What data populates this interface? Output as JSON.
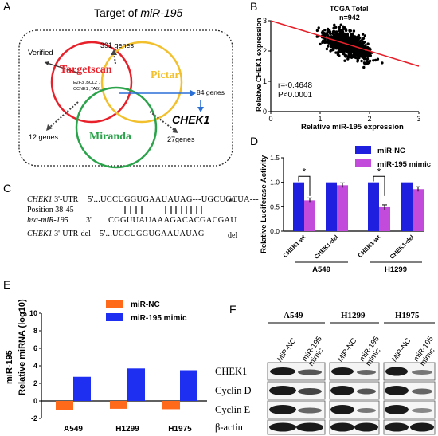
{
  "panels": {
    "A": {
      "label": "A",
      "title_prefix": "Target of ",
      "title_em": "miR-195",
      "circles": [
        {
          "name": "Targetscan",
          "color": "#e8202a"
        },
        {
          "name": "Pictar",
          "color": "#f2c02c"
        },
        {
          "name": "Miranda",
          "color": "#2aa34a"
        }
      ],
      "verified": "Verified",
      "verified_genes_1": "E2F3 ,BCL2 ,",
      "verified_genes_2": "CCNE1 ,TAB1",
      "genes_391": "391 genes",
      "genes_84": "84 genes",
      "genes_12": "12 genes",
      "genes_27": "27genes",
      "target": "CHEK1"
    },
    "B": {
      "label": "B",
      "title": "TCGA  Total",
      "n": "n=942",
      "r": "r=-0.4648",
      "p": "P<0.0001",
      "line_color": "#e8202a"
    },
    "C": {
      "label": "C",
      "utr_name": "CHEK1",
      "utr_suffix": " 3'-UTR",
      "utr_seq": "5'...UCCUGGUGAAUAUAG---UGCUGCUA---",
      "wt": "wt",
      "position": "Position 38-45",
      "mir_name": "hsa-miR-195",
      "mir_seq": "CGGUUAUAAAGACACGACGAU",
      "three_prime": "3'",
      "del_name": "CHEK1",
      "del_suffix": " 3'-UTR-del",
      "del_seq": "5'...UCCUGGUGAAUAUAG---",
      "del": "del"
    },
    "D": {
      "label": "D"
    },
    "E": {
      "label": "E"
    },
    "F": {
      "label": "F",
      "cell_lines": [
        "A549",
        "H1299",
        "H1975"
      ],
      "lane_1": "MiR-NC",
      "lane_2a": "miR-195",
      "lane_2b": "mimic",
      "rows": [
        "CHEK1",
        "Cyclin D",
        "Cyclin E",
        "β-actin"
      ]
    }
  },
  "chart_data": [
    {
      "id": "B",
      "type": "scatter",
      "title": "TCGA  Total",
      "subtitle": "n=942",
      "xlabel": "Relative miR-195 expression",
      "ylabel": "Relative CHEK1 expression",
      "xlim": [
        0,
        3
      ],
      "ylim": [
        0,
        3
      ],
      "xticks": [
        "0",
        "1",
        "2",
        "3"
      ],
      "yticks": [
        "0",
        "1",
        "2",
        "3"
      ],
      "regression": {
        "x": [
          0,
          3
        ],
        "y": [
          3.0,
          1.5
        ]
      },
      "annotations": [
        "r=-0.4648",
        "P<0.0001"
      ],
      "point_count": 942
    },
    {
      "id": "D",
      "type": "bar",
      "ylabel": "Relative Luciferase Activity",
      "ylim": [
        0,
        1.5
      ],
      "yticks": [
        "0.0",
        "0.5",
        "1.0",
        "1.5"
      ],
      "categories": [
        "CHEK1-wt",
        "CHEK1-del",
        "CHEK1-wt",
        "CHEK1-del"
      ],
      "groups": [
        "A549",
        "H1299"
      ],
      "series": [
        {
          "name": "miR-NC",
          "color": "#1f1fe0",
          "values": [
            1.0,
            1.0,
            1.0,
            1.0
          ]
        },
        {
          "name": "miR-195 mimic",
          "color": "#c24bdc",
          "values": [
            0.63,
            0.94,
            0.49,
            0.86
          ]
        }
      ],
      "significance": [
        "*",
        "*"
      ]
    },
    {
      "id": "E",
      "type": "bar",
      "ylabel": "miR-195\nRelative miRNA (log10)",
      "ylabel_1": "miR-195",
      "ylabel_2": "Relative miRNA (log10)",
      "ylim": [
        -2,
        10
      ],
      "yticks": [
        "-2",
        "0",
        "2",
        "4",
        "6",
        "8",
        "10"
      ],
      "categories": [
        "A549",
        "H1299",
        "H1975"
      ],
      "series": [
        {
          "name": "miR-NC",
          "color": "#ff6a1a",
          "values": [
            -1.0,
            -0.9,
            -0.95
          ]
        },
        {
          "name": "miR-195 mimic",
          "color": "#1f2ff2",
          "values": [
            2.75,
            3.7,
            3.5
          ]
        }
      ],
      "legend_position": "top-right"
    }
  ]
}
